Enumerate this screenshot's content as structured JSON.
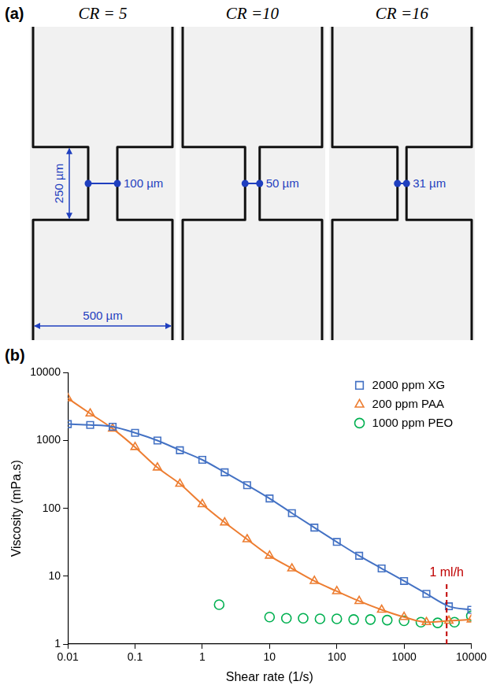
{
  "panel_a": {
    "label": "(a)",
    "panels": [
      {
        "title": "CR = 5",
        "constriction_width": "100 µm",
        "constriction_length": "250 µm",
        "channel_width": "500 µm"
      },
      {
        "title": "CR =10",
        "constriction_width": "50 µm"
      },
      {
        "title": "CR =16",
        "constriction_width": "31 µm"
      }
    ]
  },
  "chart_data": {
    "type": "scatter",
    "panel_label": "(b)",
    "x_label": "Shear rate (1/s)",
    "y_label": "Viscosity (mPa.s)",
    "log": true,
    "grid": false,
    "legend": "upper right",
    "xlim": [
      0.01,
      10000
    ],
    "xticks": [
      0.01,
      0.1,
      1,
      10,
      100,
      1000,
      10000
    ],
    "ylim": [
      1,
      10000
    ],
    "yticks": [
      1,
      10,
      100,
      1000,
      10000
    ],
    "series": [
      {
        "name": "2000 ppm XG",
        "color": "#4472c4",
        "marker": "square",
        "line_style": "solid",
        "x": [
          0.01,
          0.0215,
          0.0464,
          0.1,
          0.215,
          0.464,
          1,
          2.15,
          4.64,
          10,
          21.5,
          46.4,
          100,
          215,
          464,
          1000,
          2150,
          4640,
          10000
        ],
        "values": [
          1750,
          1700,
          1600,
          1300,
          1000,
          720,
          520,
          340,
          220,
          140,
          85,
          52,
          32,
          20,
          13,
          8.5,
          5.5,
          3.6,
          3.2
        ]
      },
      {
        "name": "200 ppm PAA",
        "color": "#ed7d31",
        "marker": "triangle",
        "line_style": "solid",
        "x": [
          0.01,
          0.0215,
          0.0464,
          0.1,
          0.215,
          0.464,
          1,
          2.15,
          4.64,
          10,
          21.5,
          46.4,
          100,
          215,
          464,
          1000,
          2150,
          4640,
          10000
        ],
        "values": [
          4200,
          2500,
          1500,
          800,
          400,
          230,
          115,
          62,
          35,
          20,
          13,
          8.5,
          6,
          4.3,
          3.2,
          2.5,
          2.1,
          2.2,
          2.3
        ]
      },
      {
        "name": "1000 ppm PEO",
        "color": "#00b050",
        "marker": "circle",
        "line_style": "none",
        "x": [
          1.78,
          10,
          17.8,
          31.6,
          56.2,
          100,
          178,
          316,
          562,
          1000,
          1780,
          3160,
          5620,
          10000
        ],
        "values": [
          3.8,
          2.5,
          2.4,
          2.4,
          2.35,
          2.35,
          2.3,
          2.3,
          2.25,
          2.2,
          2.1,
          2.05,
          2.1,
          2.6
        ]
      }
    ],
    "annotations": [
      {
        "text": "1 ml/h",
        "x": 4300,
        "y_from": 1,
        "y_to": 8,
        "color": "#c00000",
        "line_style": "dashed"
      }
    ]
  }
}
